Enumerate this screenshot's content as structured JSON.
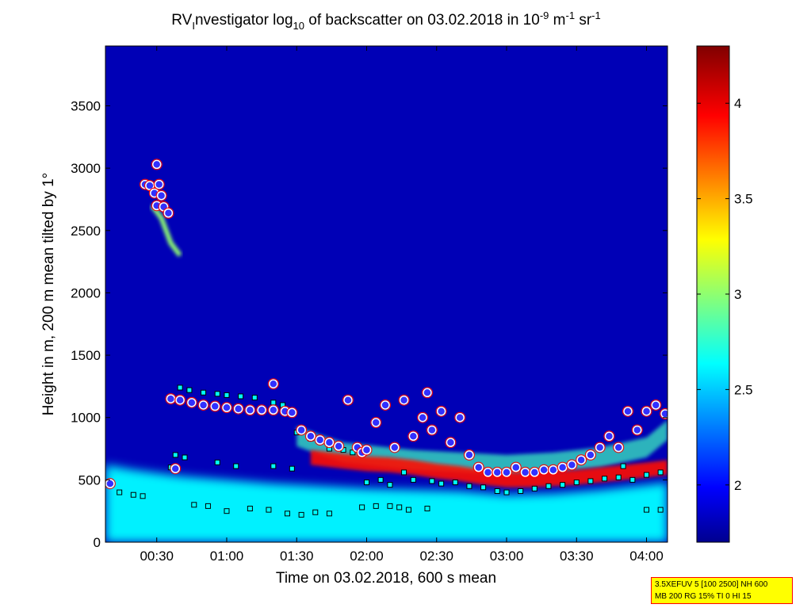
{
  "chart_data": {
    "type": "heatmap",
    "title": {
      "prefix": "RV",
      "sub1": "I",
      "mid": "nvestigator log",
      "sub2": "10",
      "mid2": " of backscatter on 03.02.2018 in 10",
      "sup1": "-9",
      "mid3": " m",
      "sup2": "-1",
      "mid4": " sr",
      "sup3": "-1"
    },
    "xlabel": "Time on 03.02.2018, 600 s mean",
    "ylabel": "Height in m, 200 m mean tilted by 1°",
    "x_ticks": [
      "00:30",
      "01:00",
      "01:30",
      "02:00",
      "02:30",
      "03:00",
      "03:30",
      "04:00"
    ],
    "x_tick_minutes": [
      30,
      60,
      90,
      120,
      150,
      180,
      210,
      240
    ],
    "xlim_minutes": [
      8,
      249
    ],
    "y_ticks": [
      0,
      500,
      1000,
      1500,
      2000,
      2500,
      3000,
      3500
    ],
    "ylim": [
      0,
      3980
    ],
    "colorbar": {
      "ticks": [
        2,
        2.5,
        3,
        3.5,
        4
      ],
      "tick_labels": [
        "2",
        "2.5",
        "3",
        "3.5",
        "4"
      ],
      "range": [
        1.7,
        4.3
      ],
      "colormap": "jet"
    },
    "background_value": 1.8,
    "layers": [
      {
        "name": "surface-aerosol",
        "value": 2.6,
        "points": [
          [
            8,
            620
          ],
          [
            20,
            580
          ],
          [
            40,
            530
          ],
          [
            60,
            500
          ],
          [
            80,
            470
          ],
          [
            100,
            450
          ],
          [
            120,
            430
          ],
          [
            140,
            420
          ],
          [
            160,
            410
          ],
          [
            180,
            380
          ],
          [
            200,
            390
          ],
          [
            220,
            420
          ],
          [
            240,
            460
          ],
          [
            249,
            480
          ]
        ]
      },
      {
        "name": "elevated-aerosol",
        "value": 2.8,
        "points": [
          [
            90,
            850
          ],
          [
            100,
            780
          ],
          [
            110,
            720
          ],
          [
            120,
            700
          ],
          [
            130,
            680
          ],
          [
            140,
            660
          ],
          [
            160,
            640
          ],
          [
            180,
            620
          ],
          [
            200,
            640
          ],
          [
            220,
            680
          ],
          [
            240,
            760
          ],
          [
            249,
            900
          ]
        ]
      },
      {
        "name": "cloud-base-band",
        "value": 3.9,
        "points": [
          [
            96,
            680
          ],
          [
            110,
            650
          ],
          [
            120,
            630
          ],
          [
            130,
            620
          ],
          [
            140,
            600
          ],
          [
            150,
            570
          ],
          [
            160,
            550
          ],
          [
            170,
            520
          ],
          [
            180,
            500
          ],
          [
            190,
            500
          ],
          [
            200,
            510
          ],
          [
            210,
            520
          ],
          [
            220,
            540
          ],
          [
            230,
            560
          ],
          [
            240,
            580
          ],
          [
            249,
            600
          ]
        ]
      },
      {
        "name": "upper-cloud-streak",
        "value": 3.0,
        "points": [
          [
            28,
            2700
          ],
          [
            32,
            2600
          ],
          [
            36,
            2400
          ],
          [
            40,
            2300
          ]
        ]
      }
    ],
    "markers": {
      "cloud_top_circles": [
        [
          25,
          2870
        ],
        [
          27,
          2860
        ],
        [
          29,
          2800
        ],
        [
          30,
          2700
        ],
        [
          31,
          2870
        ],
        [
          32,
          2780
        ],
        [
          33,
          2690
        ],
        [
          35,
          2640
        ],
        [
          30,
          3030
        ],
        [
          36,
          1150
        ],
        [
          40,
          1140
        ],
        [
          45,
          1120
        ],
        [
          50,
          1100
        ],
        [
          55,
          1090
        ],
        [
          60,
          1080
        ],
        [
          65,
          1070
        ],
        [
          70,
          1060
        ],
        [
          75,
          1060
        ],
        [
          80,
          1060
        ],
        [
          85,
          1050
        ],
        [
          80,
          1270
        ],
        [
          88,
          1040
        ],
        [
          92,
          900
        ],
        [
          96,
          850
        ],
        [
          100,
          820
        ],
        [
          104,
          800
        ],
        [
          108,
          770
        ],
        [
          112,
          1140
        ],
        [
          116,
          760
        ],
        [
          118,
          720
        ],
        [
          120,
          740
        ],
        [
          124,
          960
        ],
        [
          128,
          1100
        ],
        [
          132,
          760
        ],
        [
          136,
          1140
        ],
        [
          140,
          850
        ],
        [
          144,
          1000
        ],
        [
          146,
          1200
        ],
        [
          148,
          900
        ],
        [
          152,
          1050
        ],
        [
          156,
          800
        ],
        [
          160,
          1000
        ],
        [
          164,
          700
        ],
        [
          168,
          600
        ],
        [
          172,
          560
        ],
        [
          176,
          560
        ],
        [
          180,
          560
        ],
        [
          184,
          600
        ],
        [
          188,
          560
        ],
        [
          192,
          560
        ],
        [
          196,
          580
        ],
        [
          200,
          580
        ],
        [
          204,
          600
        ],
        [
          208,
          620
        ],
        [
          212,
          660
        ],
        [
          216,
          700
        ],
        [
          220,
          760
        ],
        [
          224,
          850
        ],
        [
          228,
          760
        ],
        [
          232,
          1050
        ],
        [
          236,
          900
        ],
        [
          240,
          1050
        ],
        [
          244,
          1100
        ],
        [
          248,
          1030
        ],
        [
          10,
          470
        ],
        [
          38,
          590
        ]
      ],
      "cloud_base_squares": [
        [
          10,
          470
        ],
        [
          14,
          400
        ],
        [
          20,
          380
        ],
        [
          24,
          370
        ],
        [
          36,
          600
        ],
        [
          40,
          1240
        ],
        [
          44,
          1220
        ],
        [
          50,
          1200
        ],
        [
          56,
          1190
        ],
        [
          60,
          1180
        ],
        [
          66,
          1170
        ],
        [
          72,
          1160
        ],
        [
          80,
          1120
        ],
        [
          84,
          1100
        ],
        [
          90,
          880
        ],
        [
          96,
          830
        ],
        [
          104,
          750
        ],
        [
          110,
          740
        ],
        [
          114,
          720
        ],
        [
          120,
          480
        ],
        [
          126,
          500
        ],
        [
          130,
          460
        ],
        [
          136,
          560
        ],
        [
          140,
          500
        ],
        [
          148,
          490
        ],
        [
          152,
          470
        ],
        [
          158,
          480
        ],
        [
          164,
          450
        ],
        [
          170,
          440
        ],
        [
          176,
          410
        ],
        [
          180,
          400
        ],
        [
          186,
          410
        ],
        [
          192,
          430
        ],
        [
          198,
          450
        ],
        [
          204,
          460
        ],
        [
          210,
          480
        ],
        [
          216,
          490
        ],
        [
          222,
          510
        ],
        [
          228,
          520
        ],
        [
          234,
          500
        ],
        [
          240,
          540
        ],
        [
          246,
          560
        ],
        [
          38,
          700
        ],
        [
          42,
          680
        ],
        [
          56,
          640
        ],
        [
          64,
          610
        ],
        [
          80,
          610
        ],
        [
          88,
          590
        ],
        [
          46,
          300
        ],
        [
          52,
          290
        ],
        [
          60,
          250
        ],
        [
          70,
          270
        ],
        [
          78,
          260
        ],
        [
          86,
          230
        ],
        [
          92,
          220
        ],
        [
          98,
          240
        ],
        [
          104,
          230
        ],
        [
          118,
          280
        ],
        [
          124,
          290
        ],
        [
          130,
          290
        ],
        [
          134,
          280
        ],
        [
          138,
          260
        ],
        [
          146,
          270
        ],
        [
          230,
          610
        ],
        [
          240,
          260
        ],
        [
          246,
          260
        ]
      ]
    }
  },
  "info_box": {
    "line1": "3.5XEFUV 5 [100 2500] NH 600",
    "line2": "MB 200 RG 15% TI 0 HI 15"
  }
}
